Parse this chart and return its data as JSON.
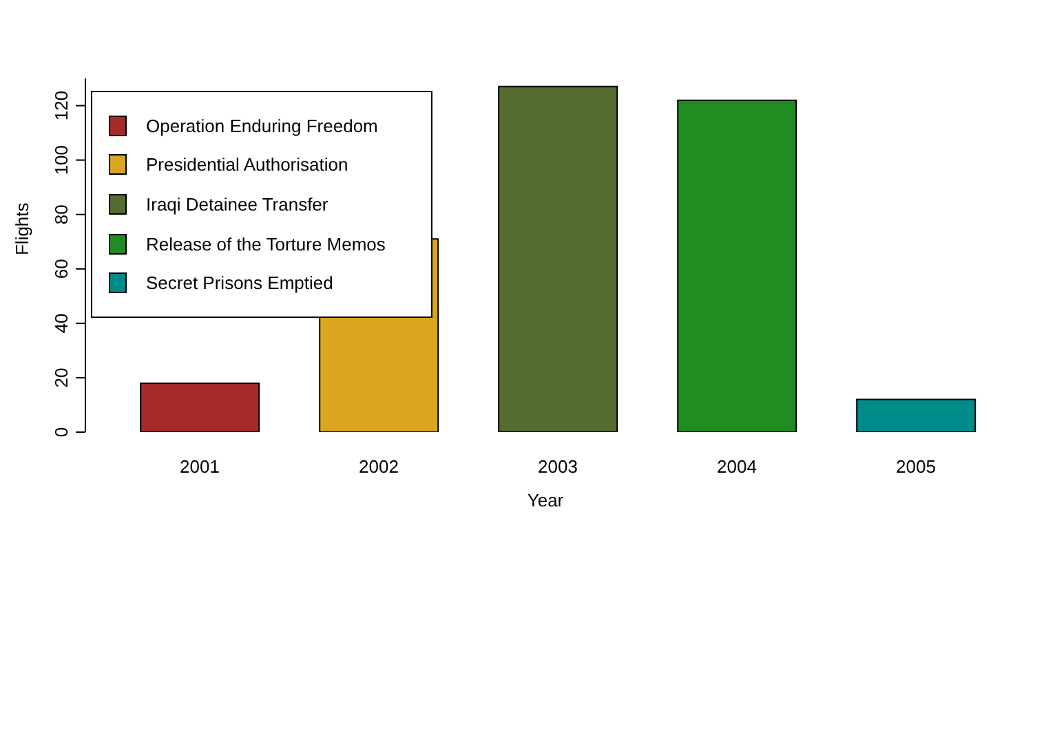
{
  "chart_data": {
    "type": "bar",
    "xlabel": "Year",
    "ylabel": "Flights",
    "categories": [
      "2001",
      "2002",
      "2003",
      "2004",
      "2005"
    ],
    "stacked": true,
    "series": [
      {
        "name": "Operation Enduring Freedom",
        "color": "#a52a2a",
        "values": [
          18,
          null,
          null,
          null,
          null
        ]
      },
      {
        "name": "Presidential Authorisation",
        "color": "#daa520",
        "values": [
          null,
          71,
          null,
          null,
          null
        ]
      },
      {
        "name": "Iraqi Detainee Transfer",
        "color": "#556b2f",
        "values": [
          null,
          null,
          127,
          null,
          null
        ]
      },
      {
        "name": "Release of the Torture Memos",
        "color": "#228b22",
        "values": [
          null,
          null,
          null,
          122,
          null
        ]
      },
      {
        "name": "Secret Prisons Emptied",
        "color": "#008b8b",
        "values": [
          null,
          null,
          null,
          null,
          12
        ]
      }
    ],
    "ylim": [
      0,
      130
    ],
    "yticks": [
      0,
      20,
      40,
      60,
      80,
      100,
      120
    ],
    "grid": false,
    "legend": "top left"
  }
}
